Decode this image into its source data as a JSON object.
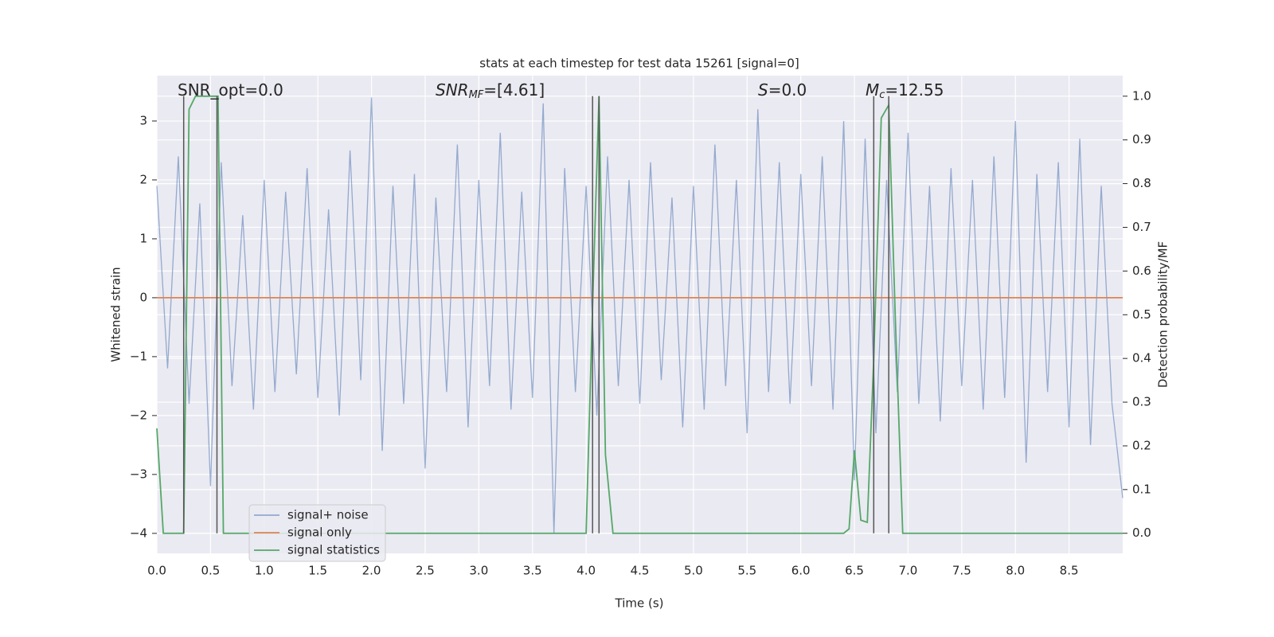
{
  "chart_data": {
    "type": "line",
    "title": "stats at each timestep for test data 15261 [signal=0]",
    "x_label": "Time (s)",
    "y_label": "Whitened strain",
    "y2_label": "Detection probability/MF",
    "xlim": [
      0,
      9.0
    ],
    "ylim": [
      -4.34,
      3.77
    ],
    "y2lim": [
      -0.046,
      1.047
    ],
    "xticks": [
      {
        "value": 0,
        "label": "0.0"
      },
      0.5,
      {
        "value": 1,
        "label": "1.0"
      },
      1.5,
      {
        "value": 2,
        "label": "2.0"
      },
      2.5,
      {
        "value": 3,
        "label": "3.0"
      },
      3.5,
      {
        "value": 4,
        "label": "4.0"
      },
      4.5,
      {
        "value": 5,
        "label": "5.0"
      },
      5.5,
      {
        "value": 6,
        "label": "6.0"
      },
      6.5,
      {
        "value": 7,
        "label": "7.0"
      },
      7.5,
      {
        "value": 8,
        "label": "8.0"
      },
      8.5
    ],
    "yticks": [
      {
        "value": -4,
        "label": "−4"
      },
      {
        "value": -3,
        "label": "−3"
      },
      {
        "value": -2,
        "label": "−2"
      },
      {
        "value": -1,
        "label": "−1"
      },
      0,
      1,
      2,
      3
    ],
    "y2ticks": [
      {
        "value": 0,
        "label": "0.0"
      },
      0.1,
      0.2,
      0.3,
      0.4,
      0.5,
      0.6,
      0.7,
      0.8,
      0.9,
      {
        "value": 1,
        "label": "1.0"
      }
    ],
    "grid": true,
    "legend": "lower left",
    "series": [
      {
        "name": "signal+ noise",
        "color": "#4c72b0",
        "x": [
          0,
          0.1,
          0.2,
          0.3,
          0.4,
          0.5,
          0.6,
          0.7,
          0.8,
          0.9,
          1,
          1.1,
          1.2,
          1.3,
          1.4,
          1.5,
          1.6,
          1.7,
          1.8,
          1.9,
          2,
          2.1,
          2.2,
          2.3,
          2.4,
          2.5,
          2.6,
          2.7,
          2.8,
          2.9,
          3,
          3.1,
          3.2,
          3.3,
          3.4,
          3.5,
          3.6,
          3.7,
          3.8,
          3.9,
          4,
          4.1,
          4.2,
          4.3,
          4.4,
          4.5,
          4.6,
          4.7,
          4.8,
          4.9,
          5,
          5.1,
          5.2,
          5.3,
          5.4,
          5.5,
          5.6,
          5.7,
          5.8,
          5.9,
          6,
          6.1,
          6.2,
          6.3,
          6.4,
          6.5,
          6.6,
          6.7,
          6.8,
          6.9,
          7,
          7.1,
          7.2,
          7.3,
          7.4,
          7.5,
          7.6,
          7.7,
          7.8,
          7.9,
          8,
          8.1,
          8.2,
          8.3,
          8.4,
          8.5,
          8.6,
          8.7,
          8.8,
          8.9,
          9
        ],
        "values": [
          1.9,
          -1.2,
          2.4,
          -1.8,
          1.6,
          -3.2,
          2.3,
          -1.5,
          1.4,
          -1.9,
          2.0,
          -1.6,
          1.8,
          -1.3,
          2.2,
          -1.7,
          1.5,
          -2.0,
          2.5,
          -1.4,
          3.4,
          -2.6,
          1.9,
          -1.8,
          2.1,
          -2.9,
          1.7,
          -1.6,
          2.6,
          -2.2,
          2.0,
          -1.5,
          2.8,
          -1.9,
          1.8,
          -1.7,
          3.3,
          -4.0,
          2.2,
          -1.6,
          1.9,
          -2.0,
          2.4,
          -1.5,
          2.0,
          -1.8,
          2.3,
          -1.4,
          1.7,
          -2.2,
          1.9,
          -1.9,
          2.6,
          -1.5,
          2.0,
          -2.3,
          3.2,
          -1.6,
          2.3,
          -1.8,
          2.1,
          -1.5,
          2.4,
          -1.9,
          3.0,
          -3.1,
          2.7,
          -2.3,
          2.0,
          -1.6,
          2.8,
          -1.8,
          1.9,
          -2.1,
          2.2,
          -1.5,
          2.0,
          -1.9,
          2.4,
          -1.7,
          3.0,
          -2.8,
          2.1,
          -1.6,
          2.3,
          -2.2,
          2.7,
          -2.5,
          1.9,
          -1.8,
          -3.4
        ]
      },
      {
        "name": "signal only",
        "color": "#dd8452",
        "x": [
          0,
          9
        ],
        "values": [
          0,
          0
        ]
      },
      {
        "name": "signal statistics",
        "color": "#55a868",
        "axis": "y2",
        "x": [
          0,
          0.06,
          0.25,
          0.3,
          0.36,
          0.5,
          0.57,
          0.62,
          4.0,
          4.06,
          4.12,
          4.18,
          4.25,
          6.4,
          6.45,
          6.5,
          6.56,
          6.62,
          6.68,
          6.75,
          6.82,
          6.88,
          6.95,
          9.0
        ],
        "values": [
          0.24,
          0,
          0,
          0.97,
          1.0,
          1.0,
          1.0,
          0,
          0,
          0.52,
          1.0,
          0.18,
          0,
          0,
          0.01,
          0.19,
          0.03,
          0.025,
          0.4,
          0.95,
          0.98,
          0.5,
          0,
          0
        ]
      }
    ],
    "vlines": {
      "color": "#555555",
      "x": [
        0.25,
        0.56,
        4.06,
        4.12,
        6.68,
        6.82
      ]
    },
    "annotations": [
      {
        "text": "SNR_opt=0.0"
      },
      {
        "text": "SNR",
        "sub": "MF",
        "rest": "=[4.61]"
      },
      {
        "text": "S",
        "rest": "=0.0"
      },
      {
        "text": "M",
        "sub": "c",
        "rest": "=12.55"
      }
    ]
  }
}
